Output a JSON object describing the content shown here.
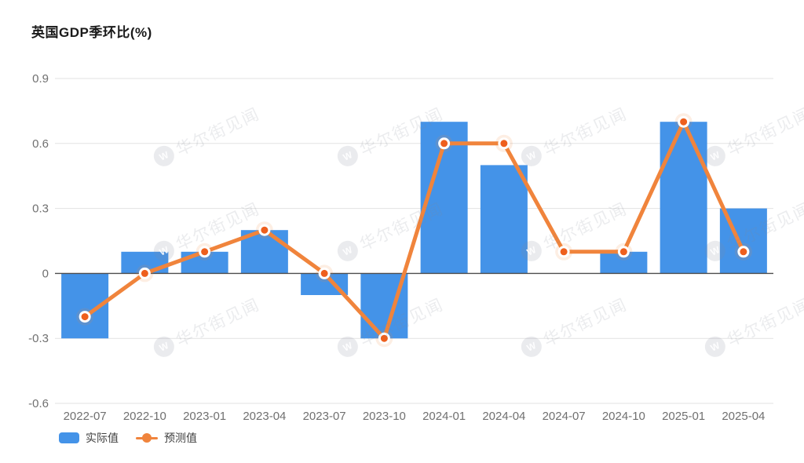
{
  "header": {
    "title": "英国GDP季环比(%)"
  },
  "watermark": {
    "text": "华尔街见闻"
  },
  "colors": {
    "bar": "#4493e8",
    "line": "#f0843c",
    "marker": "#ee5f1d",
    "grid": "#e2e2e2",
    "zero_line": "#4d4d4d",
    "axis_text": "#707070",
    "title_text": "#1a1a1a",
    "legend_text": "#404040"
  },
  "chart_data": {
    "type": "bar",
    "title": "英国GDP季环比(%)",
    "categories": [
      "2022-07",
      "2022-10",
      "2023-01",
      "2023-04",
      "2023-07",
      "2023-10",
      "2024-01",
      "2024-04",
      "2024-07",
      "2024-10",
      "2025-01",
      "2025-04"
    ],
    "series": [
      {
        "name": "实际值",
        "type": "bar",
        "color": "#4493e8",
        "values": [
          -0.3,
          0.1,
          0.1,
          0.2,
          -0.1,
          -0.3,
          0.7,
          0.5,
          0,
          0.1,
          0.7,
          0.3
        ]
      },
      {
        "name": "预测值",
        "type": "line",
        "color": "#f0843c",
        "marker_color": "#ee5f1d",
        "values": [
          -0.2,
          0,
          0.1,
          0.2,
          0,
          -0.3,
          0.6,
          0.6,
          0.1,
          0.1,
          0.7,
          0.1
        ]
      }
    ],
    "xlabel": "",
    "ylabel": "",
    "ylim": [
      -0.6,
      0.9
    ],
    "yticks": [
      0.9,
      0.6,
      0.3,
      0,
      -0.3,
      -0.6
    ],
    "grid": true,
    "legend_position": "bottom-left"
  }
}
